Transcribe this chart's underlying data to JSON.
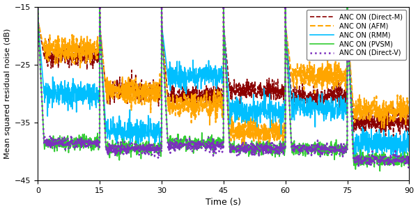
{
  "xlabel": "Time (s)",
  "ylabel": "Mean squared residual noise (dB)",
  "xlim": [
    0,
    90
  ],
  "ylim": [
    -45,
    -15
  ],
  "yticks": [
    -45,
    -35,
    -25,
    -15
  ],
  "xticks": [
    0,
    15,
    30,
    45,
    60,
    75,
    90
  ],
  "figsize": [
    6.0,
    3.03
  ],
  "dpi": 100,
  "legend_entries": [
    "ANC ON (Direct-M)",
    "ANC ON (AFM)",
    "ANC ON (RMM)",
    "ANC ON (PVSM)",
    "ANC ON (Direct-V)"
  ],
  "line_colors": [
    "#8B0000",
    "#FFA500",
    "#00BFFF",
    "#32CD32",
    "#7B2FBE"
  ],
  "line_styles": [
    "--",
    "--",
    "-",
    "-",
    ":"
  ],
  "line_widths": [
    1.2,
    1.5,
    1.2,
    1.2,
    1.8
  ],
  "spike_top": -14.5,
  "segments": [
    0,
    15,
    30,
    45,
    60,
    75,
    90
  ],
  "segment_levels": {
    "DirectM": [
      -23.5,
      -29.5,
      -30.5,
      -29.5,
      -30.5,
      -35.0
    ],
    "AFM": [
      -22.5,
      -29.5,
      -32.0,
      -36.5,
      -27.0,
      -33.0
    ],
    "RMM": [
      -30.0,
      -36.5,
      -27.0,
      -33.0,
      -32.5,
      -38.5
    ],
    "PVSM": [
      -38.5,
      -39.5,
      -38.5,
      -39.5,
      -39.5,
      -41.5
    ],
    "DirectV": [
      -38.5,
      -39.5,
      -39.0,
      -39.5,
      -39.5,
      -41.5
    ]
  },
  "noise_amps": {
    "DirectM": 0.9,
    "AFM": 1.1,
    "RMM": 1.1,
    "PVSM": 0.6,
    "DirectV": 0.5
  }
}
